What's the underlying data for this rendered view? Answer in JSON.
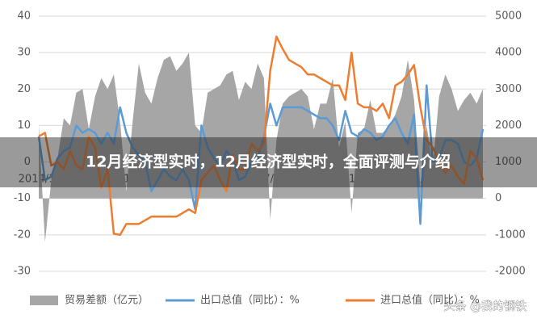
{
  "chart_data": {
    "type": "line",
    "title": "12月经济型实时，12月经济型实时，全面评测与介绍",
    "watermark": "头条 @我的钢铁",
    "categories": [
      "2014/1/31",
      null,
      null,
      null,
      null,
      null,
      null,
      null,
      null,
      null,
      null,
      null,
      "2015/1/31",
      null,
      null,
      null,
      null,
      null,
      null,
      null,
      null,
      null,
      null,
      null,
      "2016/1/31",
      null,
      null,
      null,
      null,
      null,
      null,
      null,
      null,
      null,
      null,
      null,
      "2017/1/31",
      null,
      null,
      null,
      null,
      null,
      null,
      null,
      null,
      null,
      null,
      null,
      "2018/1/31",
      null,
      null,
      null,
      null,
      null,
      null,
      null,
      null,
      null,
      null,
      null,
      "2019/1/31",
      null,
      null,
      null,
      null,
      null,
      null,
      null,
      null,
      null,
      null,
      null
    ],
    "series": [
      {
        "name": "贸易差额（亿元）",
        "type": "area",
        "axis": "y2",
        "color": "#a6a6a6",
        "values": [
          2000,
          -1200,
          500,
          1100,
          2200,
          2000,
          2900,
          3000,
          1900,
          2800,
          3300,
          3000,
          3400,
          2100,
          200,
          2100,
          3700,
          2900,
          2600,
          3300,
          3800,
          3900,
          3500,
          3700,
          4000,
          2000,
          1800,
          2900,
          3000,
          3100,
          3400,
          3500,
          2700,
          3200,
          3000,
          3700,
          3300,
          -600,
          1600,
          2600,
          2800,
          2900,
          3000,
          2800,
          1900,
          2600,
          2600,
          3300,
          1400,
          2100,
          -400,
          1800,
          1900,
          2700,
          1800,
          1800,
          2000,
          2300,
          2800,
          3800,
          2700,
          300,
          2000,
          900,
          2800,
          3400,
          3000,
          2400,
          2700,
          2900,
          2600,
          3000
        ]
      },
      {
        "name": "出口总值（同比）：%",
        "type": "line",
        "color": "#5b9bd5",
        "values": [
          7,
          -5,
          -4,
          1,
          3,
          4,
          10,
          8,
          9,
          8,
          5,
          8,
          5,
          15,
          8,
          4,
          2,
          0,
          -8,
          -5,
          -2,
          -4,
          -5,
          -2,
          -5,
          -13,
          10,
          4,
          1,
          -1,
          3,
          1,
          -5,
          -4,
          0,
          1,
          7,
          16,
          10,
          15,
          15,
          15,
          15,
          14,
          13,
          12,
          12,
          10,
          6,
          14,
          8,
          7,
          9,
          8,
          6,
          7,
          10,
          12,
          8,
          5,
          13,
          -17,
          21,
          0,
          1,
          6,
          6,
          5,
          0,
          -1,
          1,
          9
        ]
      },
      {
        "name": "进口总值（同比）：%",
        "type": "line",
        "color": "#ed7d31",
        "values": [
          7,
          8,
          -1,
          0,
          -2,
          3,
          -1,
          -2,
          7,
          4,
          -7,
          -2,
          -19.7,
          -20,
          -17,
          -17,
          -17,
          -16,
          -15,
          -15,
          -15,
          -15,
          -15,
          -14,
          -13,
          -14,
          -5,
          -3,
          -1,
          -5,
          -8,
          2,
          -2,
          -2,
          5,
          3,
          5,
          25,
          34.4,
          31,
          28,
          27,
          26,
          24,
          24,
          23,
          22,
          21,
          21,
          17,
          30,
          16,
          15,
          15,
          14,
          16,
          12,
          21,
          22,
          24,
          26.6,
          15,
          6,
          4,
          0,
          -3,
          -1,
          -4,
          -6,
          3,
          1,
          -5
        ]
      }
    ],
    "ylim": [
      -30,
      40
    ],
    "yticks": [
      -30,
      -20,
      -10,
      0,
      10,
      20,
      30,
      40
    ],
    "y2lim": [
      -2000,
      5000
    ],
    "y2ticks": [
      -2000,
      -1000,
      0,
      1000,
      2000,
      3000,
      4000,
      5000
    ],
    "grid": true
  }
}
